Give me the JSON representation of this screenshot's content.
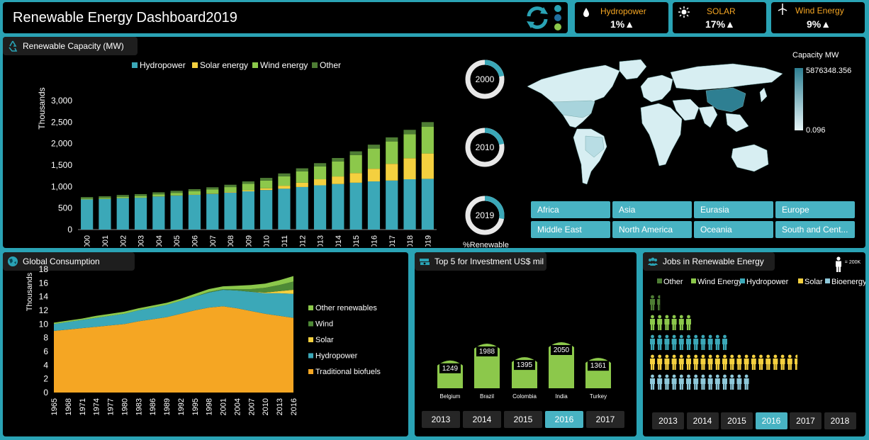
{
  "header": {
    "title": "Renewable Energy Dashboard2019",
    "kpis": [
      {
        "icon": "water-drop-icon",
        "label": "Hydropower",
        "value": "1%▲"
      },
      {
        "icon": "sun-icon",
        "label": "SOLAR",
        "value": "17%▲"
      },
      {
        "icon": "wind-turbine-icon",
        "label": "Wind Energy",
        "value": "9%▲"
      }
    ]
  },
  "colors": {
    "hydro": "#3ba8b8",
    "solar": "#f4d03f",
    "wind": "#8cc84b",
    "other": "#4e7d34",
    "biofuel": "#f5a623",
    "bioenergy": "#8ec8da"
  },
  "capacity": {
    "title": "Renewable Capacity (MW)",
    "legend": [
      "Hydropower",
      "Solar energy",
      "Wind energy",
      "Other"
    ],
    "ylabel": "Thousands"
  },
  "donuts": [
    {
      "year": "2000",
      "pct": 0.22
    },
    {
      "year": "2010",
      "pct": 0.22
    },
    {
      "year": "2019",
      "pct": 0.28
    }
  ],
  "donut_caption": "%Renewable",
  "map": {
    "legend_title": "Capacity MW",
    "max_label": "5876348.356",
    "min_label": "0.096",
    "regions": [
      "Africa",
      "Asia",
      "Eurasia",
      "Europe",
      "Middle East",
      "North America",
      "Oceania",
      "South and Cent..."
    ]
  },
  "consumption": {
    "title": "Global Consumption",
    "ylabel": "Thousands",
    "legend": [
      "Other renewables",
      "Wind",
      "Solar",
      "Hydropower",
      "Traditional biofuels"
    ]
  },
  "investment": {
    "title": "Top 5 for Investment US$ mil",
    "years": [
      "2013",
      "2014",
      "2015",
      "2016",
      "2017"
    ],
    "selected_year": "2016"
  },
  "jobs": {
    "title": "Jobs in Renewable Energy",
    "scale_label": "= 200K",
    "legend": [
      "Other",
      "Wind Energy",
      "Hydropower",
      "Solar",
      "Bioenergy"
    ],
    "years": [
      "2013",
      "2014",
      "2015",
      "2016",
      "2017",
      "2018"
    ],
    "selected_year": "2016"
  },
  "chart_data": [
    {
      "type": "bar",
      "title": "Renewable Capacity (MW)",
      "ylabel": "Thousands",
      "stacked": true,
      "categories": [
        "2000",
        "2001",
        "2002",
        "2003",
        "2004",
        "2005",
        "2006",
        "2007",
        "2008",
        "2009",
        "2010",
        "2011",
        "2012",
        "2013",
        "2014",
        "2015",
        "2016",
        "2017",
        "2018",
        "2019"
      ],
      "ylim": [
        0,
        3000
      ],
      "yticks": [
        "0",
        "500",
        "1,000",
        "1,500",
        "2,000",
        "2,500",
        "3,000"
      ],
      "series": [
        {
          "name": "Hydropower",
          "values": [
            700,
            710,
            730,
            740,
            770,
            790,
            810,
            830,
            860,
            890,
            920,
            950,
            990,
            1030,
            1060,
            1090,
            1120,
            1140,
            1170,
            1180
          ]
        },
        {
          "name": "Solar energy",
          "values": [
            1,
            1,
            2,
            2,
            3,
            5,
            6,
            8,
            13,
            23,
            40,
            70,
            100,
            140,
            175,
            225,
            295,
            390,
            490,
            590
          ]
        },
        {
          "name": "Wind energy",
          "values": [
            17,
            24,
            31,
            39,
            48,
            59,
            74,
            94,
            115,
            150,
            180,
            220,
            265,
            300,
            350,
            420,
            470,
            520,
            560,
            620
          ]
        },
        {
          "name": "Other",
          "values": [
            38,
            40,
            42,
            44,
            46,
            48,
            50,
            52,
            55,
            58,
            62,
            66,
            70,
            75,
            80,
            85,
            90,
            95,
            100,
            110
          ]
        }
      ]
    },
    {
      "type": "area",
      "title": "Global Consumption",
      "ylabel": "Thousands",
      "stacked": true,
      "x": [
        "1965",
        "1968",
        "1971",
        "1974",
        "1977",
        "1980",
        "1983",
        "1986",
        "1989",
        "1992",
        "1995",
        "1998",
        "2001",
        "2004",
        "2007",
        "2010",
        "2013",
        "2016"
      ],
      "ylim": [
        0,
        18
      ],
      "yticks": [
        "0",
        "2",
        "4",
        "6",
        "8",
        "10",
        "12",
        "14",
        "16",
        "18"
      ],
      "series": [
        {
          "name": "Traditional biofuels",
          "values": [
            9.0,
            9.2,
            9.4,
            9.6,
            9.8,
            10.0,
            10.4,
            10.7,
            11.0,
            11.5,
            12.0,
            12.4,
            12.6,
            12.3,
            11.9,
            11.5,
            11.2,
            10.9
          ]
        },
        {
          "name": "Hydropower",
          "values": [
            1.0,
            1.1,
            1.2,
            1.3,
            1.4,
            1.5,
            1.6,
            1.7,
            1.8,
            1.9,
            2.0,
            2.2,
            2.4,
            2.6,
            2.8,
            3.0,
            3.3,
            3.5
          ]
        },
        {
          "name": "Solar",
          "values": [
            0,
            0,
            0,
            0,
            0,
            0,
            0,
            0,
            0,
            0,
            0,
            0,
            0,
            0,
            0,
            0.1,
            0.3,
            0.6
          ]
        },
        {
          "name": "Wind",
          "values": [
            0,
            0,
            0,
            0,
            0,
            0,
            0,
            0,
            0,
            0,
            0,
            0.1,
            0.1,
            0.2,
            0.4,
            0.7,
            0.9,
            1.2
          ]
        },
        {
          "name": "Other renewables",
          "values": [
            0.2,
            0.2,
            0.2,
            0.3,
            0.3,
            0.3,
            0.3,
            0.3,
            0.3,
            0.3,
            0.4,
            0.4,
            0.4,
            0.5,
            0.6,
            0.6,
            0.7,
            0.8
          ]
        }
      ]
    },
    {
      "type": "bar",
      "title": "Top 5 for Investment US$ mil",
      "categories": [
        "Belgium",
        "Brazil",
        "Colombia",
        "India",
        "Turkey"
      ],
      "values": [
        1249,
        1988,
        1395,
        2050,
        1361
      ],
      "labels": [
        "1249",
        "1988",
        "1395",
        "2050",
        "1361"
      ]
    },
    {
      "type": "bar",
      "title": "Jobs in Renewable Energy",
      "categories": [
        "Other",
        "Wind Energy",
        "Hydropower",
        "Solar",
        "Bioenergy"
      ],
      "values": [
        1.5,
        6,
        11,
        20.5,
        14
      ],
      "unit": "200K per icon"
    }
  ]
}
